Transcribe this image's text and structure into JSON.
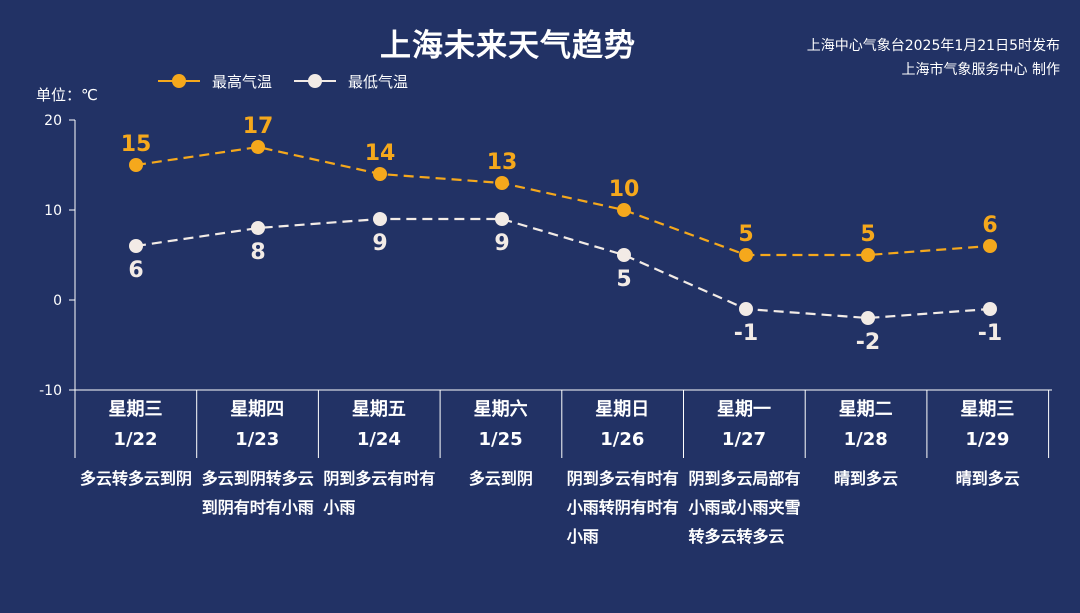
{
  "title": "上海未来天气趋势",
  "issuer": {
    "line1": "上海中心气象台2025年1月21日5时发布",
    "line2": "上海市气象服务中心 制作"
  },
  "unit_label": "单位：℃",
  "colors": {
    "background": "#223265",
    "high": "#f5a81c",
    "low": "#f2ebe6",
    "axis": "#ffffff"
  },
  "chart_data": {
    "type": "line",
    "title": "上海未来天气趋势",
    "ylabel": "单位：℃",
    "ylim": [
      -10,
      20
    ],
    "yticks": [
      -10,
      0,
      10,
      20
    ],
    "grid": false,
    "legend_position": "top-left",
    "categories": [
      "星期三 1/22",
      "星期四 1/23",
      "星期五 1/24",
      "星期六 1/25",
      "星期日 1/26",
      "星期一 1/27",
      "星期二 1/28",
      "星期三 1/29"
    ],
    "series": [
      {
        "name": "最高气温",
        "values": [
          15,
          17,
          14,
          13,
          10,
          5,
          5,
          6
        ],
        "color": "#f5a81c",
        "style": "dashed"
      },
      {
        "name": "最低气温",
        "values": [
          6,
          8,
          9,
          9,
          5,
          -1,
          -2,
          -1
        ],
        "color": "#f2ebe6",
        "style": "dashed"
      }
    ]
  },
  "days": [
    {
      "weekday": "星期三",
      "date": "1/22",
      "desc": "多云转多云到阴"
    },
    {
      "weekday": "星期四",
      "date": "1/23",
      "desc": "多云到阴转多云到阴有时有小雨"
    },
    {
      "weekday": "星期五",
      "date": "1/24",
      "desc": "阴到多云有时有小雨"
    },
    {
      "weekday": "星期六",
      "date": "1/25",
      "desc": "多云到阴"
    },
    {
      "weekday": "星期日",
      "date": "1/26",
      "desc": "阴到多云有时有小雨转阴有时有小雨"
    },
    {
      "weekday": "星期一",
      "date": "1/27",
      "desc": "阴到多云局部有小雨或小雨夹雪转多云转多云"
    },
    {
      "weekday": "星期二",
      "date": "1/28",
      "desc": "晴到多云"
    },
    {
      "weekday": "星期三",
      "date": "1/29",
      "desc": "晴到多云"
    }
  ]
}
